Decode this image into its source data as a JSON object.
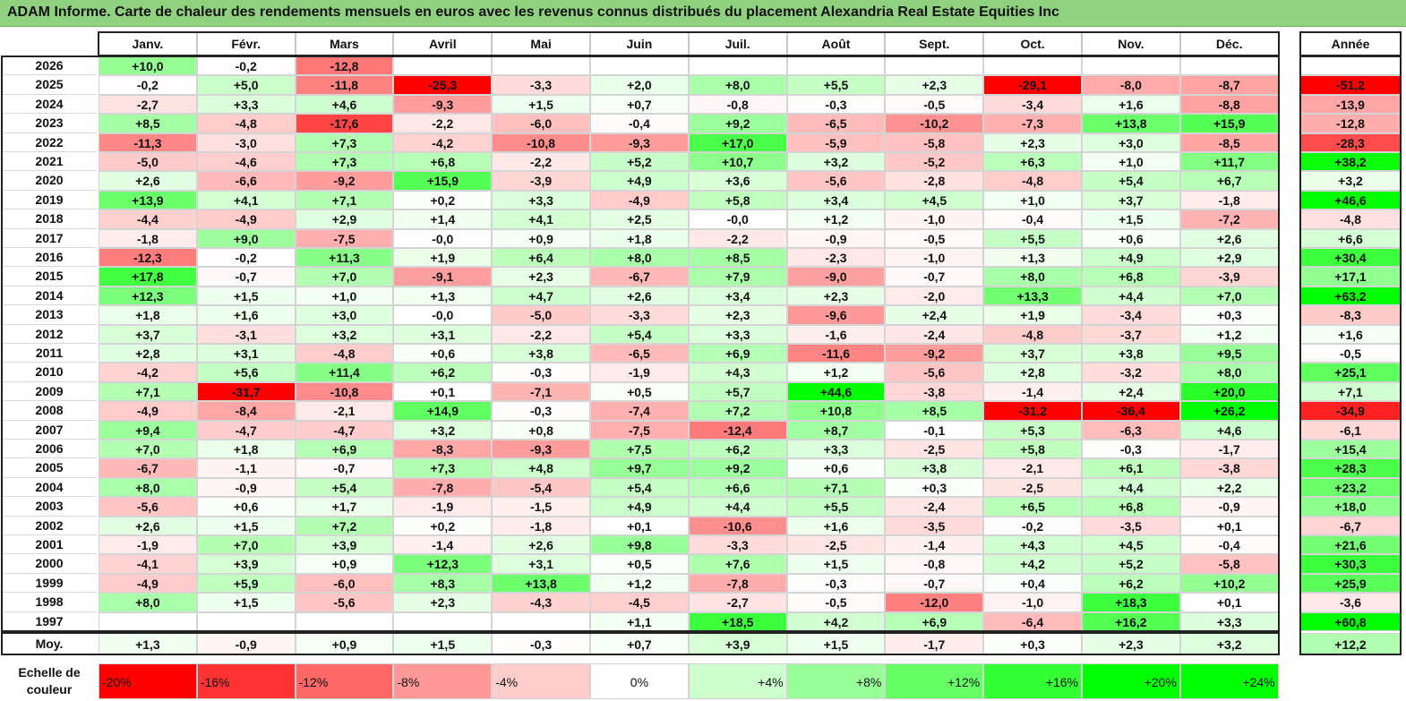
{
  "title": "ADAM Informe. Carte de chaleur des rendements mensuels en euros avec les revenus connus distribués du placement Alexandria Real Estate Equities Inc",
  "chart_data": {
    "type": "heatmap",
    "title": "ADAM Informe. Carte de chaleur des rendements mensuels en euros avec les revenus connus distribués du placement Alexandria Real Estate Equities Inc",
    "columns": [
      "Janv.",
      "Févr.",
      "Mars",
      "Avril",
      "Mai",
      "Juin",
      "Juil.",
      "Août",
      "Sept.",
      "Oct.",
      "Nov.",
      "Déc."
    ],
    "year_column_label": "Année",
    "rows": [
      {
        "year": "2026",
        "months": [
          "+10,0",
          "-0,2",
          "-12,8",
          "",
          "",
          "",
          "",
          "",
          "",
          "",
          "",
          ""
        ],
        "annual": ""
      },
      {
        "year": "2025",
        "months": [
          "-0,2",
          "+5,0",
          "-11,8",
          "-25,3",
          "-3,3",
          "+2,0",
          "+8,0",
          "+5,5",
          "+2,3",
          "-29,1",
          "-8,0",
          "-8,7"
        ],
        "annual": "-51,2"
      },
      {
        "year": "2024",
        "months": [
          "-2,7",
          "+3,3",
          "+4,6",
          "-9,3",
          "+1,5",
          "+0,7",
          "-0,8",
          "-0,3",
          "-0,5",
          "-3,4",
          "+1,6",
          "-8,8"
        ],
        "annual": "-13,9"
      },
      {
        "year": "2023",
        "months": [
          "+8,5",
          "-4,8",
          "-17,6",
          "-2,2",
          "-6,0",
          "-0,4",
          "+9,2",
          "-6,5",
          "-10,2",
          "-7,3",
          "+13,8",
          "+15,9"
        ],
        "annual": "-12,8"
      },
      {
        "year": "2022",
        "months": [
          "-11,3",
          "-3,0",
          "+7,3",
          "-4,2",
          "-10,8",
          "-9,3",
          "+17,0",
          "-5,9",
          "-5,8",
          "+2,3",
          "+3,0",
          "-8,5"
        ],
        "annual": "-28,3"
      },
      {
        "year": "2021",
        "months": [
          "-5,0",
          "-4,6",
          "+7,3",
          "+6,8",
          "-2,2",
          "+5,2",
          "+10,7",
          "+3,2",
          "-5,2",
          "+6,3",
          "+1,0",
          "+11,7"
        ],
        "annual": "+38,2"
      },
      {
        "year": "2020",
        "months": [
          "+2,6",
          "-6,6",
          "-9,2",
          "+15,9",
          "-3,9",
          "+4,9",
          "+3,6",
          "-5,6",
          "-2,8",
          "-4,8",
          "+5,4",
          "+6,7"
        ],
        "annual": "+3,2"
      },
      {
        "year": "2019",
        "months": [
          "+13,9",
          "+4,1",
          "+7,1",
          "+0,2",
          "+3,3",
          "-4,9",
          "+5,8",
          "+3,4",
          "+4,5",
          "+1,0",
          "+3,7",
          "-1,8"
        ],
        "annual": "+46,6"
      },
      {
        "year": "2018",
        "months": [
          "-4,4",
          "-4,9",
          "+2,9",
          "+1,4",
          "+4,1",
          "+2,5",
          "-0,0",
          "+1,2",
          "-1,0",
          "-0,4",
          "+1,5",
          "-7,2"
        ],
        "annual": "-4,8"
      },
      {
        "year": "2017",
        "months": [
          "-1,8",
          "+9,0",
          "-7,5",
          "-0,0",
          "+0,9",
          "+1,8",
          "-2,2",
          "-0,9",
          "-0,5",
          "+5,5",
          "+0,6",
          "+2,6"
        ],
        "annual": "+6,6"
      },
      {
        "year": "2016",
        "months": [
          "-12,3",
          "-0,2",
          "+11,3",
          "+1,9",
          "+6,4",
          "+8,0",
          "+8,5",
          "-2,3",
          "-1,0",
          "+1,3",
          "+4,9",
          "+2,9"
        ],
        "annual": "+30,4"
      },
      {
        "year": "2015",
        "months": [
          "+17,8",
          "-0,7",
          "+7,0",
          "-9,1",
          "+2,3",
          "-6,7",
          "+7,9",
          "-9,0",
          "-0,7",
          "+8,0",
          "+6,8",
          "-3,9"
        ],
        "annual": "+17,1"
      },
      {
        "year": "2014",
        "months": [
          "+12,3",
          "+1,5",
          "+1,0",
          "+1,3",
          "+4,7",
          "+2,6",
          "+3,4",
          "+2,3",
          "-2,0",
          "+13,3",
          "+4,4",
          "+7,0"
        ],
        "annual": "+63,2"
      },
      {
        "year": "2013",
        "months": [
          "+1,8",
          "+1,6",
          "+3,0",
          "-0,0",
          "-5,0",
          "-3,3",
          "+2,3",
          "-9,6",
          "+2,4",
          "+1,9",
          "-3,4",
          "+0,3"
        ],
        "annual": "-8,3"
      },
      {
        "year": "2012",
        "months": [
          "+3,7",
          "-3,1",
          "+3,2",
          "+3,1",
          "-2,2",
          "+5,4",
          "+3,3",
          "-1,6",
          "-2,4",
          "-4,8",
          "-3,7",
          "+1,2"
        ],
        "annual": "+1,6"
      },
      {
        "year": "2011",
        "months": [
          "+2,8",
          "+3,1",
          "-4,8",
          "+0,6",
          "+3,8",
          "-6,5",
          "+6,9",
          "-11,6",
          "-9,2",
          "+3,7",
          "+3,8",
          "+9,5"
        ],
        "annual": "-0,5"
      },
      {
        "year": "2010",
        "months": [
          "-4,2",
          "+5,6",
          "+11,4",
          "+6,2",
          "-0,3",
          "-1,9",
          "+4,3",
          "+1,2",
          "-5,6",
          "+2,8",
          "-3,2",
          "+8,0"
        ],
        "annual": "+25,1"
      },
      {
        "year": "2009",
        "months": [
          "+7,1",
          "-31,7",
          "-10,8",
          "+0,1",
          "-7,1",
          "+0,5",
          "+5,7",
          "+44,6",
          "-3,8",
          "-1,4",
          "+2,4",
          "+20,0"
        ],
        "annual": "+7,1"
      },
      {
        "year": "2008",
        "months": [
          "-4,9",
          "-8,4",
          "-2,1",
          "+14,9",
          "-0,3",
          "-7,4",
          "+7,2",
          "+10,8",
          "+8,5",
          "-31,2",
          "-36,4",
          "+26,2"
        ],
        "annual": "-34,9"
      },
      {
        "year": "2007",
        "months": [
          "+9,4",
          "-4,7",
          "-4,7",
          "+3,2",
          "+0,8",
          "-7,5",
          "-12,4",
          "+8,7",
          "-0,1",
          "+5,3",
          "-6,3",
          "+4,6"
        ],
        "annual": "-6,1"
      },
      {
        "year": "2006",
        "months": [
          "+7,0",
          "+1,8",
          "+6,9",
          "-8,3",
          "-9,3",
          "+7,5",
          "+6,2",
          "+3,3",
          "-2,5",
          "+5,8",
          "-0,3",
          "-1,7"
        ],
        "annual": "+15,4"
      },
      {
        "year": "2005",
        "months": [
          "-6,7",
          "-1,1",
          "-0,7",
          "+7,3",
          "+4,8",
          "+9,7",
          "+9,2",
          "+0,6",
          "+3,8",
          "-2,1",
          "+6,1",
          "-3,8"
        ],
        "annual": "+28,3"
      },
      {
        "year": "2004",
        "months": [
          "+8,0",
          "-0,9",
          "+5,4",
          "-7,8",
          "-5,4",
          "+5,4",
          "+6,6",
          "+7,1",
          "+0,3",
          "-2,5",
          "+4,4",
          "+2,2"
        ],
        "annual": "+23,2"
      },
      {
        "year": "2003",
        "months": [
          "-5,6",
          "+0,6",
          "+1,7",
          "-1,9",
          "-1,5",
          "+4,9",
          "+4,4",
          "+5,5",
          "-2,4",
          "+6,5",
          "+6,8",
          "-0,9"
        ],
        "annual": "+18,0"
      },
      {
        "year": "2002",
        "months": [
          "+2,6",
          "+1,5",
          "+7,2",
          "+0,2",
          "-1,8",
          "+0,1",
          "-10,6",
          "+1,6",
          "-3,5",
          "-0,2",
          "-3,5",
          "+0,1"
        ],
        "annual": "-6,7"
      },
      {
        "year": "2001",
        "months": [
          "-1,9",
          "+7,0",
          "+3,9",
          "-1,4",
          "+2,6",
          "+9,8",
          "-3,3",
          "-2,5",
          "-1,4",
          "+4,3",
          "+4,5",
          "-0,4"
        ],
        "annual": "+21,6"
      },
      {
        "year": "2000",
        "months": [
          "-4,1",
          "+3,9",
          "+0,9",
          "+12,3",
          "+3,1",
          "+0,5",
          "+7,6",
          "+1,5",
          "-0,8",
          "+4,2",
          "+5,2",
          "-5,8"
        ],
        "annual": "+30,3"
      },
      {
        "year": "1999",
        "months": [
          "-4,9",
          "+5,9",
          "-6,0",
          "+8,3",
          "+13,8",
          "+1,2",
          "-7,8",
          "-0,3",
          "-0,7",
          "+0,4",
          "+6,2",
          "+10,2"
        ],
        "annual": "+25,9"
      },
      {
        "year": "1998",
        "months": [
          "+8,0",
          "+1,5",
          "-5,6",
          "+2,3",
          "-4,3",
          "-4,5",
          "-2,7",
          "-0,5",
          "-12,0",
          "-1,0",
          "+18,3",
          "+0,1"
        ],
        "annual": "-3,6"
      },
      {
        "year": "1997",
        "months": [
          "",
          "",
          "",
          "",
          "",
          "+1,1",
          "+18,5",
          "+4,2",
          "+6,9",
          "-6,4",
          "+16,2",
          "+3,3"
        ],
        "annual": "+60,8"
      }
    ],
    "average": {
      "label": "Moy.",
      "months": [
        "+1,3",
        "-0,9",
        "+0,9",
        "+1,5",
        "-0,3",
        "+0,7",
        "+3,9",
        "+1,5",
        "-1,7",
        "+0,3",
        "+2,3",
        "+3,2"
      ],
      "annual": "+12,2"
    },
    "legend": {
      "title": "Echelle de couleur",
      "items": [
        {
          "label": "-20%",
          "color": "#ff0000",
          "align": "left"
        },
        {
          "label": "-16%",
          "color": "#ff3333",
          "align": "left"
        },
        {
          "label": "-12%",
          "color": "#ff6666",
          "align": "left"
        },
        {
          "label": "-8%",
          "color": "#ff9999",
          "align": "left"
        },
        {
          "label": "-4%",
          "color": "#ffcccc",
          "align": "left"
        },
        {
          "label": "0%",
          "color": "#ffffff",
          "align": "center"
        },
        {
          "label": "+4%",
          "color": "#ccffcc",
          "align": "right"
        },
        {
          "label": "+8%",
          "color": "#99ff99",
          "align": "right"
        },
        {
          "label": "+12%",
          "color": "#66ff66",
          "align": "right"
        },
        {
          "label": "+16%",
          "color": "#33ff33",
          "align": "right"
        },
        {
          "label": "+20%",
          "color": "#00ff00",
          "align": "right"
        },
        {
          "label": "+24%",
          "color": "#00ff00",
          "align": "right"
        }
      ]
    }
  }
}
